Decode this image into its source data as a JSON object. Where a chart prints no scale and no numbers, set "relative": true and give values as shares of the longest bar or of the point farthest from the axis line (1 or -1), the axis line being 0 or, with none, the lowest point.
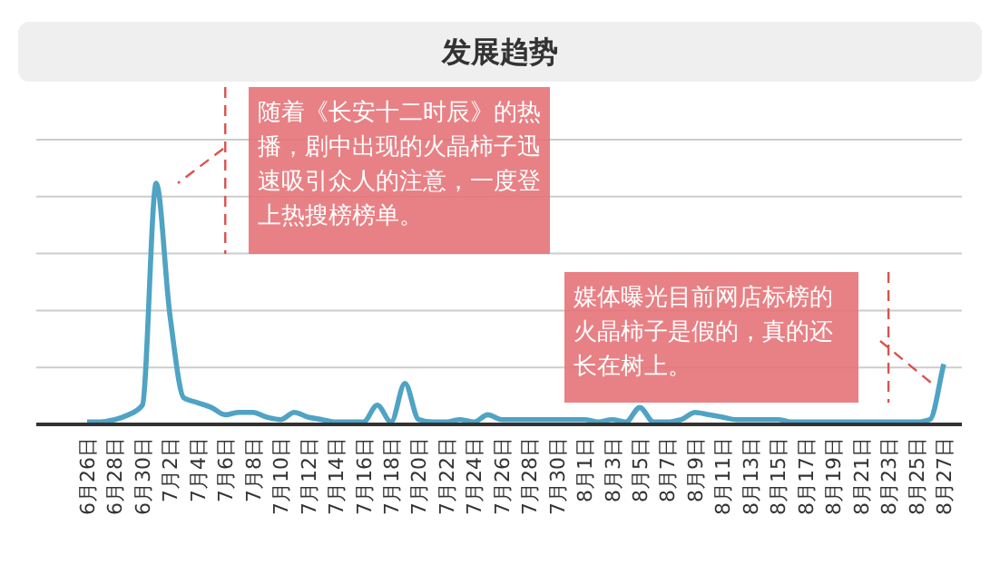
{
  "chart_data": {
    "type": "line",
    "title": "发展趋势",
    "relative": true,
    "grid": "y",
    "categories": [
      "6月26日",
      null,
      "6月28日",
      null,
      "6月30日",
      null,
      "7月2日",
      null,
      "7月4日",
      null,
      "7月6日",
      null,
      "7月8日",
      null,
      "7月10日",
      null,
      "7月12日",
      null,
      "7月14日",
      null,
      "7月16日",
      null,
      "7月18日",
      null,
      "7月20日",
      null,
      "7月22日",
      null,
      "7月24日",
      null,
      "7月26日",
      null,
      "7月28日",
      null,
      "7月30日",
      null,
      "8月1日",
      null,
      "8月3日",
      null,
      "8月5日",
      null,
      "8月7日",
      null,
      "8月9日",
      null,
      "8月11日",
      null,
      "8月13日",
      null,
      "8月15日",
      null,
      "8月17日",
      null,
      "8月19日",
      null,
      "8月21日",
      null,
      "8月23日",
      null,
      "8月25日",
      null,
      "8月27日"
    ],
    "series": [
      {
        "color": "#4fa3c4",
        "values": [
          0.01,
          0.01,
          0.02,
          0.04,
          0.08,
          1,
          0.45,
          0.11,
          0.09,
          0.07,
          0.04,
          0.05,
          0.05,
          0.03,
          0.02,
          0.05,
          0.03,
          0.02,
          0.01,
          0.01,
          0.01,
          0.08,
          0.01,
          0.17,
          0.02,
          0.01,
          0.01,
          0.02,
          0.01,
          0.04,
          0.02,
          0.02,
          0.02,
          0.02,
          0.02,
          0.02,
          0.02,
          0.01,
          0.02,
          0.01,
          0.07,
          0.01,
          0.01,
          0.02,
          0.05,
          0.04,
          0.03,
          0.02,
          0.02,
          0.02,
          0.02,
          0.01,
          0.01,
          0.01,
          0.01,
          0.01,
          0.01,
          0.01,
          0.01,
          0.01,
          0.01,
          0.02,
          0.25
        ]
      }
    ],
    "annotations": [
      "随着《长安十二时辰》的热播，剧中出现的火晶柿子迅速吸引众人的注意，一度登上热搜榜榜单。",
      "媒体曝光目前网店标榜的火晶柿子是假的，真的还长在树上。"
    ],
    "ref_lines": [
      {
        "axis": "x",
        "value": "7月6日",
        "label": null,
        "color": "#d9534f",
        "line_style": "dashed"
      },
      {
        "axis": "x",
        "value": "8月23日",
        "label": null,
        "color": "#d9534f",
        "line_style": "dashed"
      }
    ]
  }
}
